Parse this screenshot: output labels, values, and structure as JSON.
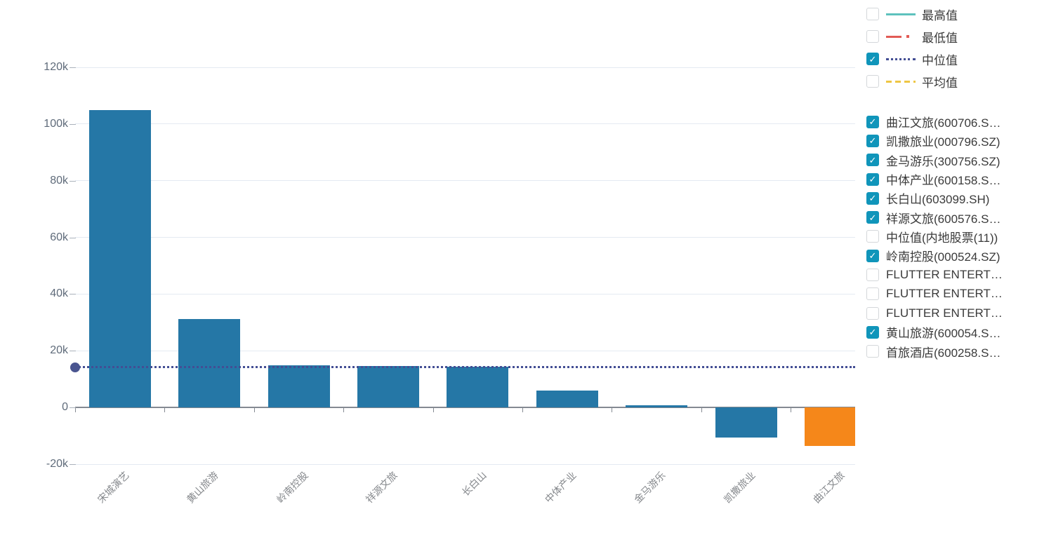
{
  "colors": {
    "bar_blue": "#2577a6",
    "bar_orange": "#f5871a",
    "median_line": "#434e94",
    "median_marker": "#4a5590",
    "grid_line": "#e4eaf2",
    "axis_line": "#848a92",
    "checkbox_checked": "#1095ba",
    "legend_max": "#5ec2bd",
    "legend_min": "#e25b55",
    "legend_median": "#434e94",
    "legend_avg": "#eec644"
  },
  "legend": {
    "stats": [
      {
        "label": "最高值",
        "checked": false,
        "style": "solid",
        "color": "#5ec2bd"
      },
      {
        "label": "最低值",
        "checked": false,
        "style": "dashdot",
        "color": "#e25b55"
      },
      {
        "label": "中位值",
        "checked": true,
        "style": "dotted",
        "color": "#434e94"
      },
      {
        "label": "平均值",
        "checked": false,
        "style": "dashed",
        "color": "#eec644"
      }
    ],
    "series": [
      {
        "label": "曲江文旅(600706.S…",
        "checked": true
      },
      {
        "label": "凯撒旅业(000796.SZ)",
        "checked": true
      },
      {
        "label": "金马游乐(300756.SZ)",
        "checked": true
      },
      {
        "label": "中体产业(600158.S…",
        "checked": true
      },
      {
        "label": "长白山(603099.SH)",
        "checked": true
      },
      {
        "label": "祥源文旅(600576.S…",
        "checked": true
      },
      {
        "label": "中位值(内地股票(11))",
        "checked": false
      },
      {
        "label": "岭南控股(000524.SZ)",
        "checked": true
      },
      {
        "label": "FLUTTER ENTERT…",
        "checked": false
      },
      {
        "label": "FLUTTER ENTERT…",
        "checked": false
      },
      {
        "label": "FLUTTER ENTERT…",
        "checked": false
      },
      {
        "label": "黄山旅游(600054.S…",
        "checked": true
      },
      {
        "label": "首旅酒店(600258.S…",
        "checked": false
      }
    ]
  },
  "chart_data": {
    "type": "bar",
    "title": "",
    "xlabel": "",
    "ylabel": "",
    "categories": [
      "宋城演艺",
      "黄山旅游",
      "岭南控股",
      "祥源文旅",
      "长白山",
      "中体产业",
      "金马游乐",
      "凯撒旅业",
      "曲江文旅"
    ],
    "values": [
      105000,
      31200,
      15000,
      14600,
      14500,
      6000,
      800,
      -10500,
      -13500
    ],
    "bar_colors": [
      "#2577a6",
      "#2577a6",
      "#2577a6",
      "#2577a6",
      "#2577a6",
      "#2577a6",
      "#2577a6",
      "#2577a6",
      "#f5871a"
    ],
    "median": {
      "label": "中位值",
      "value": 14200,
      "color": "#434e94",
      "line_style": "dotted"
    },
    "y_ticks": [
      {
        "label": "120k",
        "value": 120000
      },
      {
        "label": "100k",
        "value": 100000
      },
      {
        "label": "80k",
        "value": 80000
      },
      {
        "label": "60k",
        "value": 60000
      },
      {
        "label": "40k",
        "value": 40000
      },
      {
        "label": "20k",
        "value": 20000
      },
      {
        "label": "0",
        "value": 0
      },
      {
        "label": "-20k",
        "value": -20000
      }
    ],
    "ylim": [
      -20000,
      120000
    ],
    "grid": true,
    "x_label_rotation": 45,
    "legend_position": "right"
  }
}
